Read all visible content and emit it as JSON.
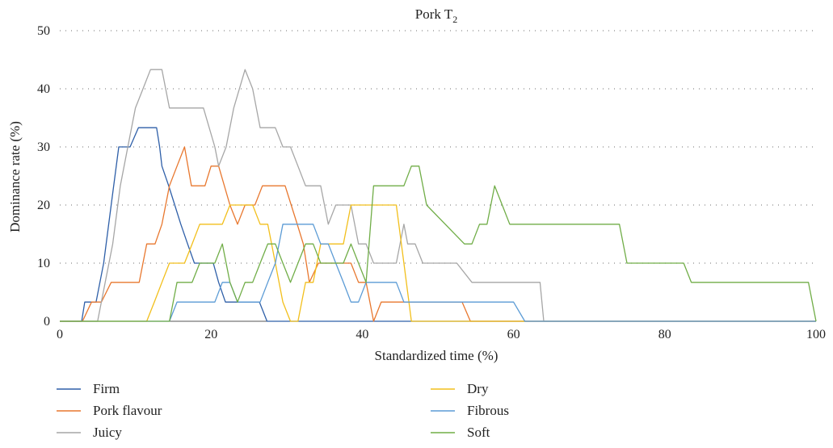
{
  "chart_data": {
    "type": "line",
    "title_main": "Pork T",
    "title_sub": "2",
    "xlabel": "Standardized time (%)",
    "ylabel": "Dominance rate (%)",
    "xlim": [
      0,
      100
    ],
    "ylim": [
      0,
      50
    ],
    "xticks": [
      "0",
      "20",
      "40",
      "60",
      "80",
      "100"
    ],
    "yticks": [
      "0",
      "10",
      "20",
      "30",
      "40",
      "50"
    ],
    "grid": "horizontal dotted",
    "legend": "bottom, two columns",
    "series": [
      {
        "name": "Firm",
        "color": "#2e5fa8",
        "x": [
          0,
          1.6,
          2.9,
          3.3,
          4.8,
          5.8,
          6.8,
          7.8,
          8.3,
          9.3,
          10.4,
          11.0,
          12.5,
          12.8,
          13.2,
          13.5,
          14.4,
          15.2,
          16.0,
          16.9,
          17.8,
          18.7,
          19.4,
          20.3,
          21.0,
          21.9,
          22.6,
          23.5,
          24.2,
          25.0,
          25.8,
          26.4,
          27.4,
          100
        ],
        "y": [
          0,
          0,
          0,
          3.3,
          3.3,
          10,
          20,
          30,
          30,
          30,
          33.3,
          33.3,
          33.3,
          33.3,
          30,
          26.7,
          23.3,
          20,
          16.7,
          13.3,
          10,
          10,
          10,
          10,
          6.7,
          3.3,
          3.3,
          3.3,
          3.3,
          3.3,
          3.3,
          3.3,
          0,
          0
        ]
      },
      {
        "name": "Pork flavour",
        "color": "#e8772e",
        "x": [
          0,
          3.0,
          4.2,
          5.5,
          6.8,
          7.8,
          9.0,
          10.5,
          11.5,
          12.6,
          13.5,
          14.5,
          15.5,
          16.5,
          17.4,
          18.2,
          19.2,
          20.0,
          21.0,
          22.5,
          23.5,
          24.5,
          25.8,
          26.8,
          27.8,
          28.8,
          29.8,
          30.6,
          31.4,
          32.2,
          33.0,
          34.2,
          35.5,
          36.5,
          37.5,
          38.5,
          39.5,
          40.5,
          41.5,
          42.5,
          43.8,
          44.8,
          46.2,
          47.5,
          48.8,
          53.2,
          54.3,
          55.5,
          100
        ],
        "y": [
          0,
          0,
          3.3,
          3.3,
          6.7,
          6.7,
          6.7,
          6.7,
          13.3,
          13.3,
          16.7,
          23.3,
          26.7,
          30,
          23.3,
          23.3,
          23.3,
          26.7,
          26.7,
          20,
          16.7,
          20,
          20,
          23.3,
          23.3,
          23.3,
          23.3,
          20,
          16.7,
          13.3,
          6.7,
          10,
          10,
          10,
          10,
          10,
          6.7,
          6.7,
          0,
          3.3,
          3.3,
          3.3,
          3.3,
          3.3,
          3.3,
          3.3,
          0,
          0,
          0
        ]
      },
      {
        "name": "Juicy",
        "color": "#a6a6a6",
        "x": [
          0,
          5.0,
          6.0,
          7.0,
          8.0,
          9.0,
          10.0,
          11.0,
          12.0,
          13.5,
          14.5,
          15.5,
          17.0,
          18.0,
          19.0,
          20.5,
          21.0,
          22.0,
          23.0,
          24.5,
          25.5,
          26.5,
          27.5,
          28.5,
          29.5,
          30.5,
          31.5,
          32.5,
          33.5,
          34.5,
          35.5,
          36.5,
          37.5,
          38.5,
          39.5,
          40.5,
          41.5,
          42.5,
          43.5,
          44.5,
          45.5,
          46.0,
          47.0,
          48.0,
          49.5,
          50.5,
          52.5,
          54.5,
          56.5,
          58.5,
          60.5,
          62.0,
          63.5,
          64.0,
          100
        ],
        "y": [
          0,
          0,
          6.7,
          13.3,
          23.3,
          30,
          36.7,
          40,
          43.3,
          43.3,
          36.7,
          36.7,
          36.7,
          36.7,
          36.7,
          30,
          26.7,
          30,
          36.7,
          43.3,
          40,
          33.3,
          33.3,
          33.3,
          30,
          30,
          26.7,
          23.3,
          23.3,
          23.3,
          16.7,
          20,
          20,
          20,
          13.3,
          13.3,
          10,
          10,
          10,
          10,
          16.7,
          13.3,
          13.3,
          10,
          10,
          10,
          10,
          6.7,
          6.7,
          6.7,
          6.7,
          6.7,
          6.7,
          0,
          0
        ]
      },
      {
        "name": "Dry",
        "color": "#f2bf1b",
        "x": [
          0,
          11.5,
          12.5,
          13.5,
          14.5,
          15.5,
          16.5,
          17.5,
          18.5,
          19.5,
          20.5,
          21.5,
          22.5,
          23.5,
          24.5,
          25.5,
          26.5,
          27.5,
          28.5,
          29.5,
          30.5,
          31.5,
          32.5,
          33.5,
          34.5,
          35.5,
          36.5,
          37.5,
          38.5,
          39.5,
          40.5,
          41.5,
          42.5,
          43.5,
          44.5,
          45.5,
          46.5,
          100
        ],
        "y": [
          0,
          0,
          3.3,
          6.7,
          10,
          10,
          10,
          13.3,
          16.7,
          16.7,
          16.7,
          16.7,
          20,
          20,
          20,
          20,
          16.7,
          16.7,
          10,
          3.3,
          0,
          0,
          6.7,
          6.7,
          13.3,
          13.3,
          13.3,
          13.3,
          20,
          20,
          20,
          20,
          20,
          20,
          20,
          10,
          0,
          0
        ]
      },
      {
        "name": "Fibrous",
        "color": "#5b9bd5",
        "x": [
          0,
          14.5,
          15.5,
          16.5,
          17.5,
          18.5,
          19.5,
          20.5,
          21.5,
          22.5,
          23.5,
          24.5,
          25.5,
          26.5,
          27.5,
          28.5,
          29.5,
          30.5,
          31.5,
          32.5,
          33.5,
          34.5,
          35.5,
          36.5,
          37.5,
          38.5,
          39.5,
          40.5,
          41.5,
          42.5,
          43.5,
          44.5,
          45.5,
          46.5,
          47.5,
          48.5,
          49.5,
          60.0,
          61.5,
          100
        ],
        "y": [
          0,
          0,
          3.3,
          3.3,
          3.3,
          3.3,
          3.3,
          3.3,
          6.7,
          6.7,
          3.3,
          3.3,
          3.3,
          3.3,
          6.7,
          10,
          16.7,
          16.7,
          16.7,
          16.7,
          16.7,
          13.3,
          13.3,
          10,
          6.7,
          3.3,
          3.3,
          6.7,
          6.7,
          6.7,
          6.7,
          6.7,
          3.3,
          3.3,
          3.3,
          3.3,
          3.3,
          3.3,
          0,
          0
        ]
      },
      {
        "name": "Soft",
        "color": "#70ad47",
        "x": [
          0,
          14.5,
          15.5,
          16.5,
          17.5,
          18.5,
          19.5,
          20.5,
          21.5,
          22.5,
          23.5,
          24.5,
          25.5,
          26.5,
          27.5,
          28.5,
          29.5,
          30.5,
          31.5,
          32.5,
          33.5,
          34.5,
          35.5,
          36.5,
          37.5,
          38.5,
          39.5,
          40.5,
          41.5,
          42.5,
          43.5,
          44.5,
          45.5,
          46.5,
          47.5,
          48.5,
          53.5,
          54.5,
          55.5,
          56.5,
          57.5,
          58.5,
          59.5,
          60.5,
          61.5,
          62.5,
          63.5,
          64.5,
          65.5,
          66.5,
          67.5,
          68.5,
          74.0,
          75.0,
          76.0,
          82.5,
          83.5,
          99.0,
          100
        ],
        "y": [
          0,
          0,
          6.7,
          6.7,
          6.7,
          10,
          10,
          10,
          13.3,
          6.7,
          3.3,
          6.7,
          6.7,
          10,
          13.3,
          13.3,
          10,
          6.7,
          10,
          13.3,
          13.3,
          10,
          10,
          10,
          10,
          13.3,
          10,
          6.7,
          23.3,
          23.3,
          23.3,
          23.3,
          23.3,
          26.7,
          26.7,
          20,
          13.3,
          13.3,
          16.7,
          16.7,
          23.3,
          20,
          16.7,
          16.7,
          16.7,
          16.7,
          16.7,
          16.7,
          16.7,
          16.7,
          16.7,
          16.7,
          16.7,
          10,
          10,
          10,
          6.7,
          6.7,
          0
        ]
      }
    ]
  }
}
